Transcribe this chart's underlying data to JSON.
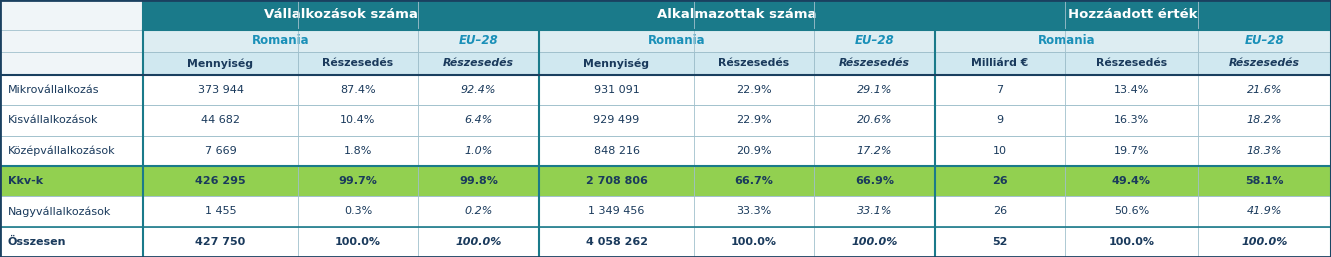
{
  "headers": [
    "Vállalkozások száma",
    "Alkalmazottak száma",
    "Hozzáadott érték"
  ],
  "subheader_ro": "Romania",
  "subheader_eu": "EU–28",
  "col_labels": [
    "Mennyiség",
    "Részesedés",
    "Részesedés",
    "Mennyiség",
    "Részesedés",
    "Részesedés",
    "Milliárd €",
    "Részesedés",
    "Részesedés"
  ],
  "rows": [
    {
      "label": "Mikrovállalkozás",
      "vals": [
        "373 944",
        "87.4%",
        "92.4%",
        "931 091",
        "22.9%",
        "29.1%",
        "7",
        "13.4%",
        "21.6%"
      ],
      "hl": false,
      "bold": false
    },
    {
      "label": "Kisvállalkozások",
      "vals": [
        "44 682",
        "10.4%",
        "6.4%",
        "929 499",
        "22.9%",
        "20.6%",
        "9",
        "16.3%",
        "18.2%"
      ],
      "hl": false,
      "bold": false
    },
    {
      "label": "Középvállalkozások",
      "vals": [
        "7 669",
        "1.8%",
        "1.0%",
        "848 216",
        "20.9%",
        "17.2%",
        "10",
        "19.7%",
        "18.3%"
      ],
      "hl": false,
      "bold": false
    },
    {
      "label": "Kkv-k",
      "vals": [
        "426 295",
        "99.7%",
        "99.8%",
        "2 708 806",
        "66.7%",
        "66.9%",
        "26",
        "49.4%",
        "58.1%"
      ],
      "hl": true,
      "bold": true
    },
    {
      "label": "Nagyvállalkozások",
      "vals": [
        "1 455",
        "0.3%",
        "0.2%",
        "1 349 456",
        "33.3%",
        "33.1%",
        "26",
        "50.6%",
        "41.9%"
      ],
      "hl": false,
      "bold": false
    },
    {
      "label": "Összesen",
      "vals": [
        "427 750",
        "100.0%",
        "100.0%",
        "4 058 262",
        "100.0%",
        "100.0%",
        "52",
        "100.0%",
        "100.0%"
      ],
      "hl": false,
      "bold": true
    }
  ],
  "col_header_bg": "#1a7a8a",
  "col_header_fg": "#ffffff",
  "subhdr_bg": "#ddedf2",
  "subhdr_ro_fg": "#1a90b8",
  "subhdr_eu_fg": "#1a90b8",
  "colhdr3_bg": "#d0e8f0",
  "colhdr3_fg": "#1a3a5c",
  "row_bg": "#ffffff",
  "hl_bg": "#92d050",
  "hl_fg": "#1a3a5c",
  "row_fg": "#1a3a5c",
  "border_dark": "#1a4060",
  "border_mid": "#1a7a8a",
  "border_light": "#a0c0cc",
  "topleft_bg": "#f0f5f8"
}
